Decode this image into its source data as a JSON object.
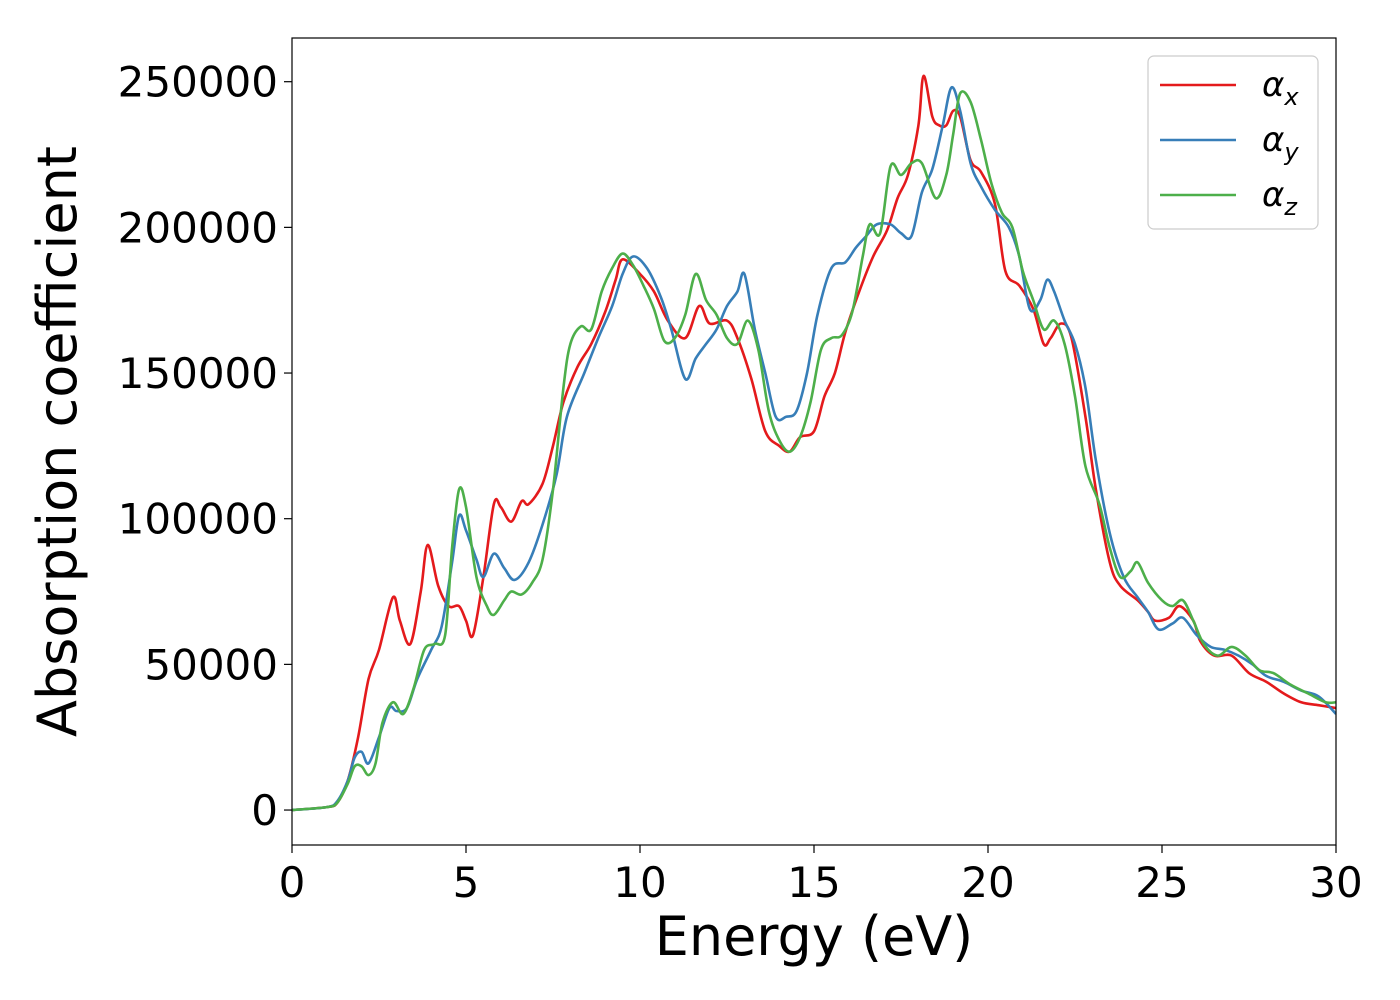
{
  "chart_data": {
    "type": "line",
    "title": "",
    "xlabel": "Energy (eV)",
    "ylabel": "Absorption coefficient",
    "xlim": [
      0,
      30
    ],
    "ylim": [
      -12000,
      265000
    ],
    "xticks": [
      0,
      5,
      10,
      15,
      20,
      25,
      30
    ],
    "yticks": [
      0,
      50000,
      100000,
      150000,
      200000,
      250000
    ],
    "grid": false,
    "legend_position": "top-right",
    "series": [
      {
        "name": "α",
        "subscript": "x",
        "color": "#e41a1c",
        "points": [
          [
            0,
            0
          ],
          [
            1,
            1000
          ],
          [
            1.3,
            2500
          ],
          [
            1.6,
            10000
          ],
          [
            1.9,
            25000
          ],
          [
            2.2,
            45000
          ],
          [
            2.5,
            55000
          ],
          [
            2.9,
            73000
          ],
          [
            3.1,
            65000
          ],
          [
            3.4,
            57000
          ],
          [
            3.7,
            75000
          ],
          [
            3.9,
            91000
          ],
          [
            4.2,
            77000
          ],
          [
            4.5,
            70000
          ],
          [
            4.8,
            70000
          ],
          [
            5.0,
            65000
          ],
          [
            5.2,
            60000
          ],
          [
            5.5,
            80000
          ],
          [
            5.8,
            105000
          ],
          [
            6.0,
            104000
          ],
          [
            6.3,
            99000
          ],
          [
            6.6,
            106000
          ],
          [
            6.8,
            105000
          ],
          [
            7.2,
            112000
          ],
          [
            7.5,
            125000
          ],
          [
            7.8,
            140000
          ],
          [
            8.2,
            152000
          ],
          [
            8.6,
            160000
          ],
          [
            9.0,
            171000
          ],
          [
            9.3,
            182000
          ],
          [
            9.5,
            189000
          ],
          [
            10.0,
            184000
          ],
          [
            10.4,
            178000
          ],
          [
            10.8,
            168000
          ],
          [
            11.3,
            162000
          ],
          [
            11.7,
            173000
          ],
          [
            12.0,
            167000
          ],
          [
            12.5,
            168000
          ],
          [
            12.8,
            162000
          ],
          [
            13.2,
            148000
          ],
          [
            13.6,
            130000
          ],
          [
            14.0,
            125000
          ],
          [
            14.3,
            123000
          ],
          [
            14.6,
            128000
          ],
          [
            15.0,
            130000
          ],
          [
            15.3,
            142000
          ],
          [
            15.6,
            150000
          ],
          [
            15.9,
            164000
          ],
          [
            16.3,
            178000
          ],
          [
            16.7,
            190000
          ],
          [
            17.1,
            199000
          ],
          [
            17.4,
            210000
          ],
          [
            17.7,
            218000
          ],
          [
            18.0,
            235000
          ],
          [
            18.15,
            252000
          ],
          [
            18.4,
            238000
          ],
          [
            18.6,
            235000
          ],
          [
            18.8,
            235000
          ],
          [
            19.0,
            240000
          ],
          [
            19.2,
            238000
          ],
          [
            19.5,
            223000
          ],
          [
            19.8,
            219000
          ],
          [
            20.2,
            208000
          ],
          [
            20.5,
            185000
          ],
          [
            20.9,
            180000
          ],
          [
            21.3,
            172000
          ],
          [
            21.6,
            160000
          ],
          [
            21.8,
            162000
          ],
          [
            22.1,
            167000
          ],
          [
            22.4,
            162000
          ],
          [
            22.8,
            135000
          ],
          [
            23.1,
            110000
          ],
          [
            23.5,
            85000
          ],
          [
            23.8,
            77000
          ],
          [
            24.3,
            72000
          ],
          [
            24.6,
            68000
          ],
          [
            24.8,
            65000
          ],
          [
            25.2,
            66000
          ],
          [
            25.5,
            70000
          ],
          [
            25.9,
            65000
          ],
          [
            26.1,
            58000
          ],
          [
            26.5,
            53000
          ],
          [
            27.0,
            53000
          ],
          [
            27.5,
            47000
          ],
          [
            28.0,
            44000
          ],
          [
            28.5,
            40000
          ],
          [
            29.0,
            37000
          ],
          [
            29.5,
            36000
          ],
          [
            30,
            35000
          ]
        ]
      },
      {
        "name": "α",
        "subscript": "y",
        "color": "#377eb8",
        "points": [
          [
            0,
            0
          ],
          [
            1,
            1000
          ],
          [
            1.3,
            3000
          ],
          [
            1.6,
            10000
          ],
          [
            1.8,
            18000
          ],
          [
            2.0,
            20000
          ],
          [
            2.2,
            16000
          ],
          [
            2.5,
            25000
          ],
          [
            2.8,
            35000
          ],
          [
            3.0,
            34000
          ],
          [
            3.3,
            35000
          ],
          [
            3.6,
            45000
          ],
          [
            4.0,
            55000
          ],
          [
            4.3,
            63000
          ],
          [
            4.6,
            85000
          ],
          [
            4.8,
            101000
          ],
          [
            5.0,
            96000
          ],
          [
            5.3,
            86000
          ],
          [
            5.5,
            80000
          ],
          [
            5.8,
            88000
          ],
          [
            6.1,
            83000
          ],
          [
            6.4,
            79000
          ],
          [
            6.8,
            85000
          ],
          [
            7.2,
            98000
          ],
          [
            7.6,
            115000
          ],
          [
            7.9,
            135000
          ],
          [
            8.4,
            150000
          ],
          [
            8.8,
            162000
          ],
          [
            9.2,
            173000
          ],
          [
            9.5,
            184000
          ],
          [
            9.8,
            190000
          ],
          [
            10.2,
            186000
          ],
          [
            10.6,
            176000
          ],
          [
            10.9,
            165000
          ],
          [
            11.3,
            148000
          ],
          [
            11.6,
            155000
          ],
          [
            11.9,
            160000
          ],
          [
            12.2,
            165000
          ],
          [
            12.5,
            173000
          ],
          [
            12.8,
            178000
          ],
          [
            13.0,
            184000
          ],
          [
            13.3,
            165000
          ],
          [
            13.6,
            150000
          ],
          [
            13.9,
            135000
          ],
          [
            14.2,
            135000
          ],
          [
            14.5,
            137000
          ],
          [
            14.8,
            150000
          ],
          [
            15.1,
            170000
          ],
          [
            15.5,
            186000
          ],
          [
            15.9,
            188000
          ],
          [
            16.2,
            193000
          ],
          [
            16.5,
            197000
          ],
          [
            16.8,
            201000
          ],
          [
            17.2,
            201000
          ],
          [
            17.5,
            198000
          ],
          [
            17.8,
            197000
          ],
          [
            18.1,
            212000
          ],
          [
            18.4,
            220000
          ],
          [
            18.7,
            235000
          ],
          [
            18.95,
            248000
          ],
          [
            19.2,
            240000
          ],
          [
            19.5,
            222000
          ],
          [
            19.8,
            214000
          ],
          [
            20.2,
            206000
          ],
          [
            20.6,
            200000
          ],
          [
            20.9,
            190000
          ],
          [
            21.2,
            172000
          ],
          [
            21.5,
            175000
          ],
          [
            21.7,
            182000
          ],
          [
            21.9,
            178000
          ],
          [
            22.2,
            168000
          ],
          [
            22.5,
            160000
          ],
          [
            22.8,
            145000
          ],
          [
            23.1,
            120000
          ],
          [
            23.5,
            95000
          ],
          [
            23.9,
            80000
          ],
          [
            24.3,
            73000
          ],
          [
            24.6,
            68000
          ],
          [
            24.9,
            62000
          ],
          [
            25.3,
            64000
          ],
          [
            25.6,
            66000
          ],
          [
            26.0,
            60000
          ],
          [
            26.4,
            56000
          ],
          [
            26.8,
            55000
          ],
          [
            27.2,
            53000
          ],
          [
            27.6,
            50000
          ],
          [
            28.0,
            46000
          ],
          [
            28.5,
            44000
          ],
          [
            29.0,
            41000
          ],
          [
            29.5,
            39000
          ],
          [
            30,
            33000
          ]
        ]
      },
      {
        "name": "α",
        "subscript": "z",
        "color": "#4daf4a",
        "points": [
          [
            0,
            0
          ],
          [
            1,
            1000
          ],
          [
            1.3,
            2500
          ],
          [
            1.6,
            9000
          ],
          [
            1.8,
            15000
          ],
          [
            2.0,
            15000
          ],
          [
            2.2,
            12000
          ],
          [
            2.4,
            16000
          ],
          [
            2.6,
            30000
          ],
          [
            2.9,
            37000
          ],
          [
            3.2,
            33000
          ],
          [
            3.5,
            42000
          ],
          [
            3.8,
            55000
          ],
          [
            4.1,
            57000
          ],
          [
            4.4,
            60000
          ],
          [
            4.6,
            90000
          ],
          [
            4.8,
            110000
          ],
          [
            5.0,
            104000
          ],
          [
            5.3,
            80000
          ],
          [
            5.6,
            70000
          ],
          [
            5.8,
            67000
          ],
          [
            6.1,
            72000
          ],
          [
            6.3,
            75000
          ],
          [
            6.6,
            74000
          ],
          [
            6.9,
            78000
          ],
          [
            7.2,
            86000
          ],
          [
            7.5,
            110000
          ],
          [
            7.8,
            145000
          ],
          [
            8.0,
            160000
          ],
          [
            8.3,
            166000
          ],
          [
            8.6,
            165000
          ],
          [
            8.9,
            178000
          ],
          [
            9.2,
            186000
          ],
          [
            9.5,
            191000
          ],
          [
            9.8,
            187000
          ],
          [
            10.1,
            180000
          ],
          [
            10.4,
            172000
          ],
          [
            10.7,
            161000
          ],
          [
            11.0,
            162000
          ],
          [
            11.3,
            170000
          ],
          [
            11.6,
            184000
          ],
          [
            11.9,
            175000
          ],
          [
            12.2,
            170000
          ],
          [
            12.5,
            162000
          ],
          [
            12.8,
            160000
          ],
          [
            13.1,
            168000
          ],
          [
            13.4,
            158000
          ],
          [
            13.7,
            137000
          ],
          [
            14.0,
            127000
          ],
          [
            14.3,
            123000
          ],
          [
            14.6,
            128000
          ],
          [
            14.9,
            140000
          ],
          [
            15.2,
            158000
          ],
          [
            15.5,
            162000
          ],
          [
            15.8,
            163000
          ],
          [
            16.1,
            171000
          ],
          [
            16.4,
            190000
          ],
          [
            16.6,
            201000
          ],
          [
            16.9,
            198000
          ],
          [
            17.2,
            221000
          ],
          [
            17.5,
            218000
          ],
          [
            17.8,
            222000
          ],
          [
            18.1,
            222000
          ],
          [
            18.5,
            210000
          ],
          [
            18.8,
            218000
          ],
          [
            19.0,
            232000
          ],
          [
            19.2,
            246000
          ],
          [
            19.5,
            243000
          ],
          [
            19.8,
            230000
          ],
          [
            20.1,
            215000
          ],
          [
            20.4,
            205000
          ],
          [
            20.7,
            200000
          ],
          [
            21.0,
            185000
          ],
          [
            21.3,
            175000
          ],
          [
            21.6,
            165000
          ],
          [
            21.9,
            168000
          ],
          [
            22.2,
            160000
          ],
          [
            22.5,
            142000
          ],
          [
            22.8,
            118000
          ],
          [
            23.2,
            105000
          ],
          [
            23.5,
            90000
          ],
          [
            23.8,
            80000
          ],
          [
            24.1,
            82000
          ],
          [
            24.3,
            85000
          ],
          [
            24.6,
            78000
          ],
          [
            25.0,
            72000
          ],
          [
            25.3,
            70000
          ],
          [
            25.6,
            72000
          ],
          [
            25.9,
            65000
          ],
          [
            26.2,
            57000
          ],
          [
            26.6,
            53000
          ],
          [
            27.0,
            56000
          ],
          [
            27.4,
            53000
          ],
          [
            27.8,
            48000
          ],
          [
            28.2,
            47000
          ],
          [
            28.7,
            43000
          ],
          [
            29.2,
            40000
          ],
          [
            29.7,
            37000
          ],
          [
            30,
            37000
          ]
        ]
      }
    ]
  }
}
